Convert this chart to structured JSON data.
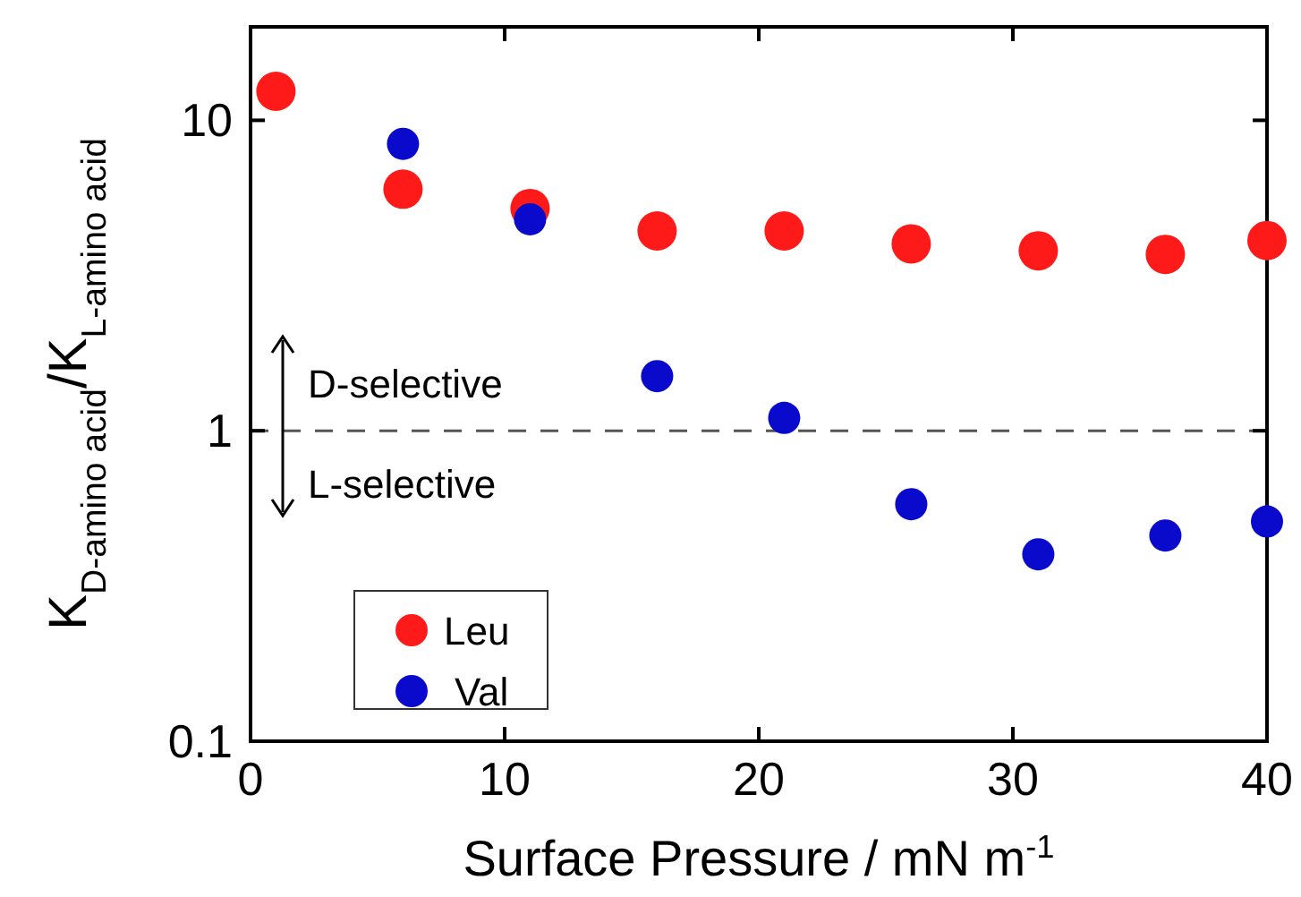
{
  "chart_data": {
    "type": "scatter",
    "xlabel": "Surface Pressure / mN m$^{-1}$",
    "ylabel": "K$_{D-amino acid}$/K$_{L-amino acid}$",
    "x": [
      1,
      6,
      11,
      16,
      21,
      26,
      31,
      36,
      40
    ],
    "series": [
      {
        "name": "Leu",
        "color": "#ff1a1a",
        "values": [
          12.4,
          6.0,
          5.2,
          4.4,
          4.4,
          4.0,
          3.8,
          3.7,
          4.1
        ]
      },
      {
        "name": "Val",
        "color": "#0a0acc",
        "values": [
          null,
          8.4,
          4.8,
          1.5,
          1.1,
          0.58,
          0.4,
          0.46,
          0.51
        ]
      }
    ],
    "xlim": [
      0,
      40
    ],
    "xticks": [
      0,
      10,
      20,
      30,
      40
    ],
    "ylim": [
      0.1,
      20
    ],
    "yticks": [
      0.1,
      1,
      10
    ],
    "log": "y",
    "grid": false,
    "legend": "bottom left",
    "marker": "circle",
    "ref_lines": [
      {
        "axis": "y",
        "value": 1,
        "line_style": "dashed",
        "color": "#555555"
      }
    ],
    "annotations": [
      "D-selective",
      "L-selective"
    ]
  }
}
